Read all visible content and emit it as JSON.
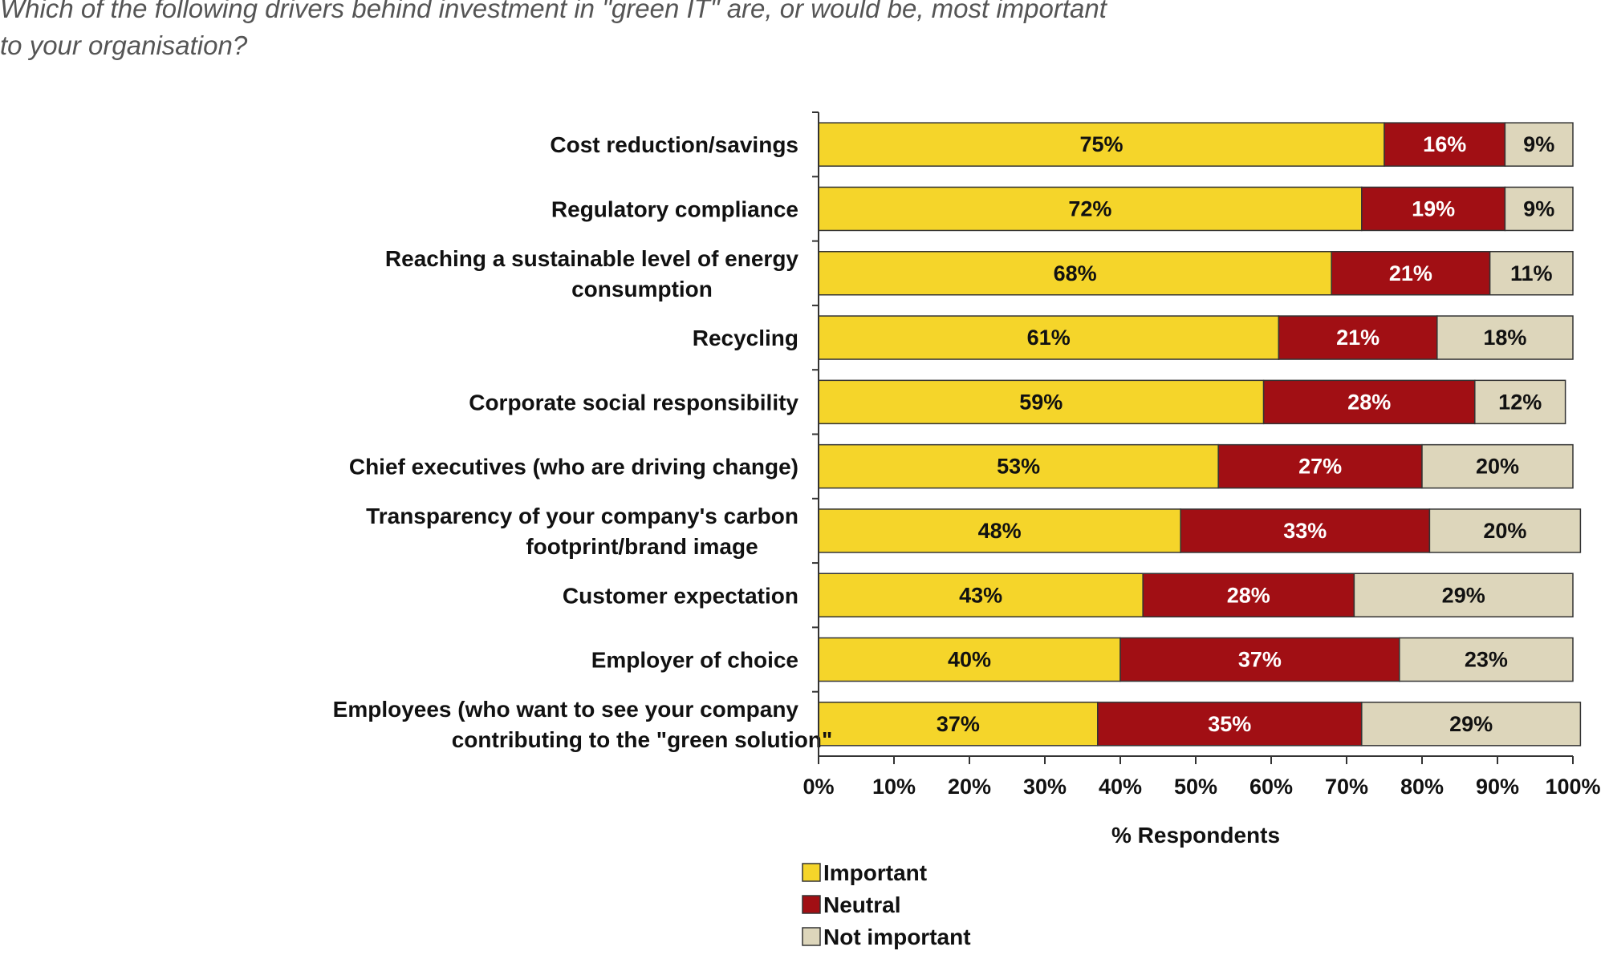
{
  "header": {
    "question": "Which of the following drivers behind investment in \"green IT\" are, or would be, most important to your organisation?"
  },
  "chart_data": {
    "type": "bar",
    "orientation": "horizontal",
    "stacked": true,
    "categories": [
      "Cost reduction/savings",
      "Regulatory compliance",
      "Reaching a sustainable level of energy consumption",
      "Recycling",
      "Corporate social responsibility",
      "Chief executives (who are driving change)",
      "Transparency of your company's carbon footprint/brand image",
      "Customer expectation",
      "Employer of choice",
      "Employees (who want to see your company contributing to the \"green solution\""
    ],
    "series": [
      {
        "name": "Important",
        "color": "#f5d52a",
        "label_color": "#111111",
        "values": [
          75,
          72,
          68,
          61,
          59,
          53,
          48,
          43,
          40,
          37
        ]
      },
      {
        "name": "Neutral",
        "color": "#a10f14",
        "label_color": "#ffffff",
        "values": [
          16,
          19,
          21,
          21,
          28,
          27,
          33,
          28,
          37,
          35
        ]
      },
      {
        "name": "Not important",
        "color": "#ddd6bb",
        "label_color": "#111111",
        "values": [
          9,
          9,
          11,
          18,
          12,
          20,
          20,
          29,
          23,
          29
        ]
      }
    ],
    "xlabel": "% Respondents",
    "xlim": [
      0,
      100
    ],
    "xticks": [
      "0%",
      "10%",
      "20%",
      "30%",
      "40%",
      "50%",
      "60%",
      "70%",
      "80%",
      "90%",
      "100%"
    ],
    "legend_position": "bottom",
    "grid": false
  }
}
